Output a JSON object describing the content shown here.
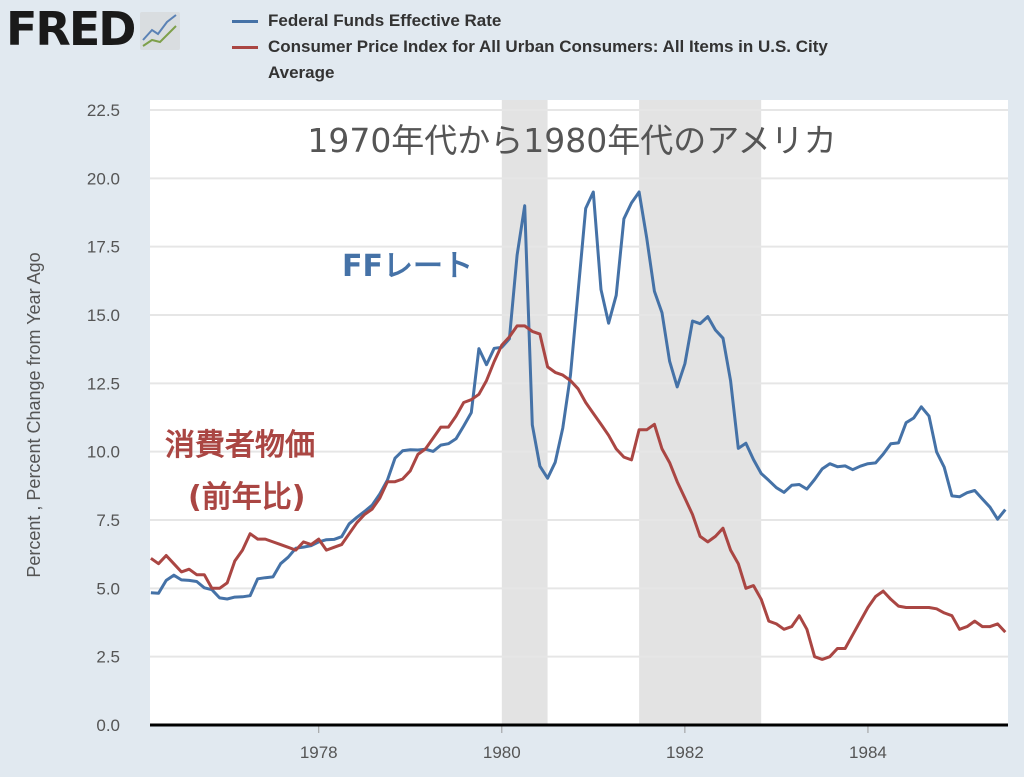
{
  "logo": {
    "text": "FRED"
  },
  "legend": [
    {
      "label": "Federal Funds Effective Rate",
      "color": "#4572a7"
    },
    {
      "label": "Consumer Price Index for All Urban Consumers: All Items in U.S. City Average",
      "color": "#aa4643"
    }
  ],
  "annotations": {
    "title": "1970年代から1980年代のアメリカ",
    "ff_label": "FFレート",
    "cpi_label_line1": "消費者物価",
    "cpi_label_line2": "(前年比)"
  },
  "chart_data": {
    "type": "line",
    "ylabel": "Percent , Percent Change from Year Ago",
    "xlabel": "",
    "ylim": [
      0,
      22.5
    ],
    "yticks": [
      "0.0",
      "2.5",
      "5.0",
      "7.5",
      "10.0",
      "12.5",
      "15.0",
      "17.5",
      "20.0",
      "22.5"
    ],
    "xlim": [
      "1976-03",
      "1985-07"
    ],
    "xticks": [
      "1978",
      "1980",
      "1982",
      "1984"
    ],
    "grid": true,
    "recessions": [
      [
        "1980-01",
        "1980-07"
      ],
      [
        "1981-07",
        "1982-11"
      ]
    ],
    "start": "1976-03",
    "frequency": "monthly",
    "series": [
      {
        "name": "Federal Funds Effective Rate",
        "color": "#4572a7",
        "values": [
          4.84,
          4.82,
          5.29,
          5.48,
          5.31,
          5.29,
          5.25,
          5.02,
          4.95,
          4.65,
          4.61,
          4.68,
          4.69,
          4.73,
          5.35,
          5.39,
          5.42,
          5.9,
          6.14,
          6.47,
          6.51,
          6.56,
          6.7,
          6.78,
          6.79,
          6.89,
          7.36,
          7.6,
          7.81,
          8.04,
          8.45,
          8.96,
          9.76,
          10.03,
          10.07,
          10.06,
          10.09,
          10.01,
          10.24,
          10.29,
          10.47,
          10.94,
          11.43,
          13.77,
          13.18,
          13.78,
          13.82,
          14.13,
          17.19,
          19.0,
          10.98,
          9.47,
          9.03,
          9.61,
          10.87,
          12.81,
          15.85,
          18.9,
          19.5,
          15.93,
          14.7,
          15.72,
          18.52,
          19.1,
          19.5,
          17.82,
          15.87,
          15.08,
          13.31,
          12.37,
          13.22,
          14.78,
          14.68,
          14.94,
          14.45,
          14.15,
          12.59,
          10.12,
          10.31,
          9.71,
          9.2,
          8.95,
          8.68,
          8.51,
          8.77,
          8.8,
          8.63,
          8.98,
          9.37,
          9.56,
          9.45,
          9.48,
          9.34,
          9.47,
          9.56,
          9.59,
          9.91,
          10.29,
          10.32,
          11.06,
          11.23,
          11.64,
          11.3,
          9.99,
          9.43,
          8.38,
          8.35,
          8.5,
          8.58,
          8.27,
          7.97,
          7.53,
          7.88
        ]
      },
      {
        "name": "Consumer Price Index for All Urban Consumers: All Items in U.S. City Average",
        "color": "#aa4643",
        "values": [
          6.1,
          5.9,
          6.2,
          5.9,
          5.6,
          5.7,
          5.5,
          5.5,
          5.0,
          5.0,
          5.2,
          6.0,
          6.4,
          7.0,
          6.8,
          6.8,
          6.7,
          6.6,
          6.5,
          6.4,
          6.7,
          6.6,
          6.8,
          6.4,
          6.5,
          6.6,
          7.0,
          7.4,
          7.7,
          7.9,
          8.3,
          8.9,
          8.9,
          9.0,
          9.3,
          9.9,
          10.1,
          10.5,
          10.9,
          10.9,
          11.3,
          11.8,
          11.9,
          12.1,
          12.6,
          13.3,
          13.9,
          14.2,
          14.6,
          14.6,
          14.4,
          14.3,
          13.1,
          12.9,
          12.8,
          12.6,
          12.3,
          11.8,
          11.4,
          11.0,
          10.6,
          10.1,
          9.8,
          9.7,
          10.8,
          10.8,
          11.0,
          10.1,
          9.6,
          8.9,
          8.3,
          7.7,
          6.9,
          6.7,
          6.9,
          7.2,
          6.4,
          5.9,
          5.0,
          5.1,
          4.6,
          3.8,
          3.7,
          3.5,
          3.6,
          4.0,
          3.5,
          2.5,
          2.4,
          2.5,
          2.8,
          2.8,
          3.3,
          3.8,
          4.3,
          4.7,
          4.9,
          4.6,
          4.35,
          4.3,
          4.3,
          4.3,
          4.3,
          4.25,
          4.1,
          4.0,
          3.5,
          3.6,
          3.8,
          3.6,
          3.6,
          3.7,
          3.4
        ]
      }
    ]
  }
}
